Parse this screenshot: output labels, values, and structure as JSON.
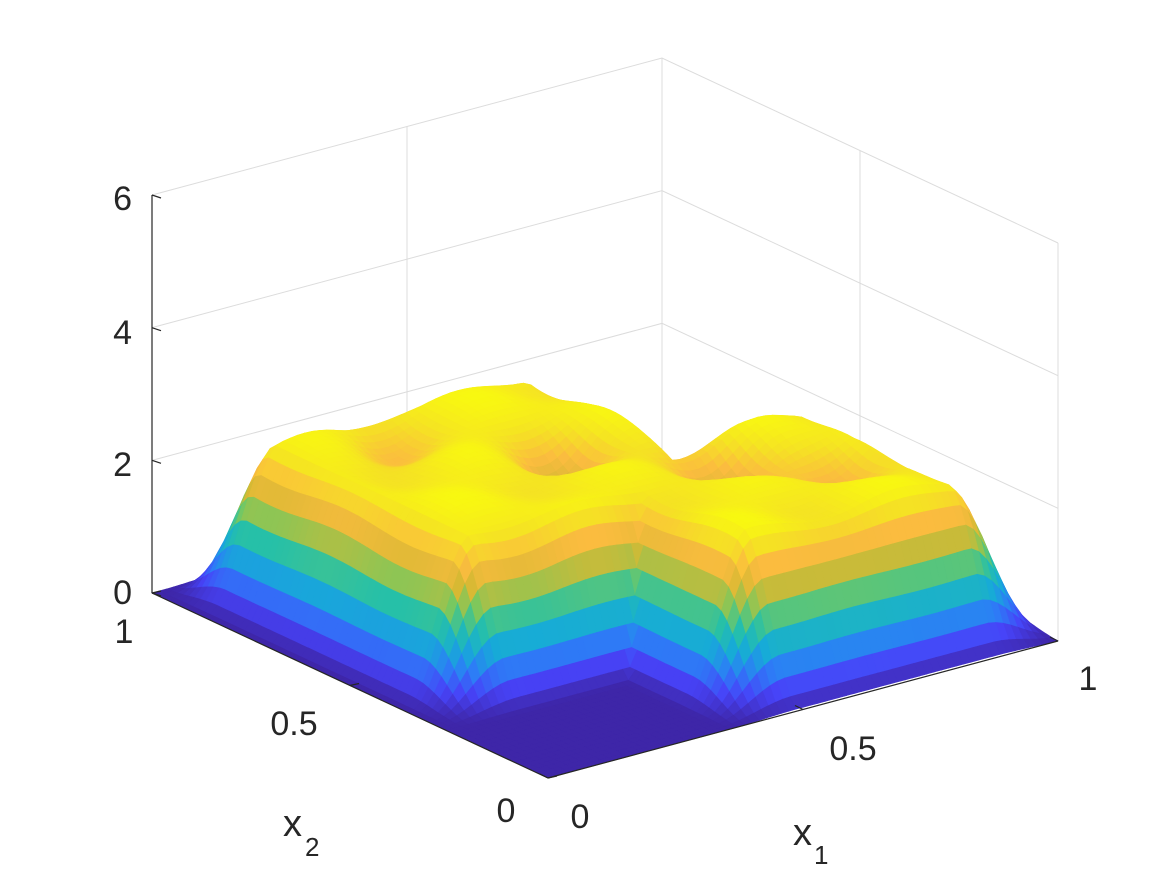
{
  "chart_data": {
    "type": "surface",
    "title": "",
    "xlabel": {
      "base": "x",
      "sub": "1"
    },
    "ylabel": {
      "base": "x",
      "sub": "2"
    },
    "zlabel": "",
    "xlim": [
      0,
      1
    ],
    "ylim": [
      0,
      1
    ],
    "zlim": [
      0,
      6
    ],
    "x_ticks": [
      0,
      0.5,
      1
    ],
    "x_tick_labels": [
      "0",
      "0.5",
      "1"
    ],
    "y_ticks": [
      0,
      0.5,
      1
    ],
    "y_tick_labels": [
      "0",
      "0.5",
      "1"
    ],
    "z_ticks": [
      0,
      2,
      4,
      6
    ],
    "z_tick_labels": [
      "0",
      "2",
      "4",
      "6"
    ],
    "grid": true,
    "colormap": "parula",
    "colormap_stops": [
      "#3e26a8",
      "#4743f8",
      "#2c7ef6",
      "#17abd7",
      "#26c0a8",
      "#7bc85d",
      "#d6b933",
      "#fbbc3f",
      "#f5e323",
      "#f9fb0e"
    ],
    "surface": {
      "description_of_shape": "piecewise plateau about z≈2.3 over the central region with small ripples; zero elsewhere",
      "plateau_height": 2.3,
      "regions": [
        {
          "x": [
            0.08,
            0.7
          ],
          "y": [
            0.32,
            0.94
          ]
        },
        {
          "x": [
            0.42,
            0.95
          ],
          "y": [
            0.06,
            0.57
          ]
        }
      ],
      "dips": [
        {
          "x": 0.5,
          "y": 0.6,
          "depth": 0.6
        },
        {
          "x": 0.68,
          "y": 0.42,
          "depth": 0.6
        },
        {
          "x": 0.3,
          "y": 0.78,
          "depth": 0.35
        },
        {
          "x": 0.82,
          "y": 0.3,
          "depth": 0.35
        }
      ]
    }
  }
}
